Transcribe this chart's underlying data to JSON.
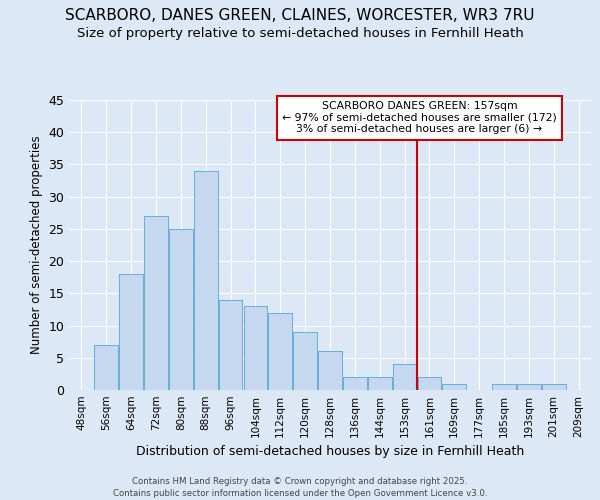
{
  "title_line1": "SCARBORO, DANES GREEN, CLAINES, WORCESTER, WR3 7RU",
  "title_line2": "Size of property relative to semi-detached houses in Fernhill Heath",
  "xlabel": "Distribution of semi-detached houses by size in Fernhill Heath",
  "ylabel": "Number of semi-detached properties",
  "footer_line1": "Contains HM Land Registry data © Crown copyright and database right 2025.",
  "footer_line2": "Contains public sector information licensed under the Open Government Licence v3.0.",
  "bin_labels": [
    "48sqm",
    "56sqm",
    "64sqm",
    "72sqm",
    "80sqm",
    "88sqm",
    "96sqm",
    "104sqm",
    "112sqm",
    "120sqm",
    "128sqm",
    "136sqm",
    "144sqm",
    "153sqm",
    "161sqm",
    "169sqm",
    "177sqm",
    "185sqm",
    "193sqm",
    "201sqm",
    "209sqm"
  ],
  "bar_values": [
    0,
    7,
    18,
    27,
    25,
    34,
    14,
    13,
    12,
    9,
    6,
    2,
    2,
    4,
    2,
    1,
    0,
    1,
    1,
    1,
    0
  ],
  "bar_color": "#c5d8f0",
  "bar_edge_color": "#6baed6",
  "vline_x": 13.5,
  "vline_color": "#cc0000",
  "annotation_line1": "SCARBORO DANES GREEN: 157sqm",
  "annotation_line2": "← 97% of semi-detached houses are smaller (172)",
  "annotation_line3": "3% of semi-detached houses are larger (6) →",
  "annotation_box_color": "#ffffff",
  "annotation_box_edge": "#cc0000",
  "ylim": [
    0,
    45
  ],
  "yticks": [
    0,
    5,
    10,
    15,
    20,
    25,
    30,
    35,
    40,
    45
  ],
  "background_color": "#dce8f5",
  "plot_background": "#dce8f5",
  "grid_color": "#ffffff",
  "title_fontsize": 11,
  "subtitle_fontsize": 10
}
